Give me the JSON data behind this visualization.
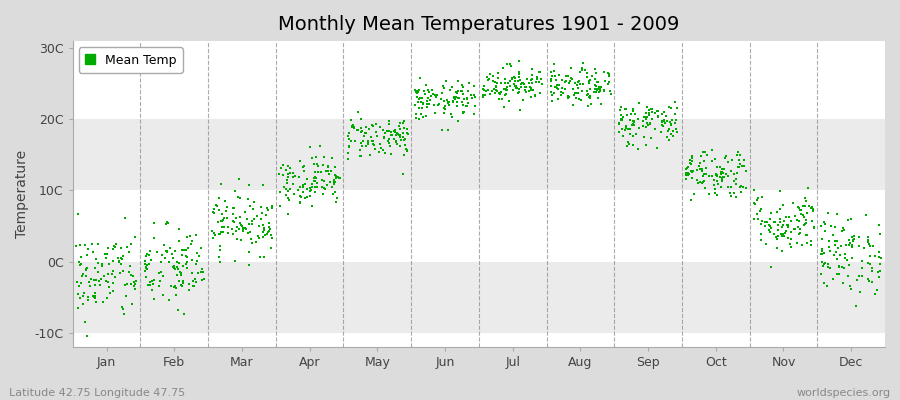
{
  "title": "Monthly Mean Temperatures 1901 - 2009",
  "ylabel": "Temperature",
  "year_start": 1901,
  "year_end": 2009,
  "lat": 42.75,
  "lon": 47.75,
  "monthly_means": [
    -2.0,
    -1.0,
    5.5,
    11.5,
    17.5,
    22.5,
    25.0,
    24.5,
    19.5,
    12.5,
    5.5,
    1.0
  ],
  "monthly_stds": [
    3.2,
    3.0,
    2.2,
    1.8,
    1.5,
    1.4,
    1.3,
    1.3,
    1.6,
    1.8,
    2.2,
    2.8
  ],
  "ylim": [
    -12,
    31
  ],
  "yticks": [
    -10,
    0,
    10,
    20,
    30
  ],
  "ytick_labels": [
    "-10C",
    "0C",
    "10C",
    "20C",
    "30C"
  ],
  "months": [
    "Jan",
    "Feb",
    "Mar",
    "Apr",
    "May",
    "Jun",
    "Jul",
    "Aug",
    "Sep",
    "Oct",
    "Nov",
    "Dec"
  ],
  "dot_color": "#00AA00",
  "dot_size": 3,
  "figure_bg": "#DCDCDC",
  "plot_bg": "#FFFFFF",
  "band_color": "#EBEBEB",
  "title_fontsize": 14,
  "axis_fontsize": 10,
  "tick_fontsize": 9,
  "legend_fontsize": 9,
  "footer_left": "Latitude 42.75 Longitude 47.75",
  "footer_right": "worldspecies.org",
  "footer_fontsize": 8,
  "dashed_line_color": "#888888"
}
